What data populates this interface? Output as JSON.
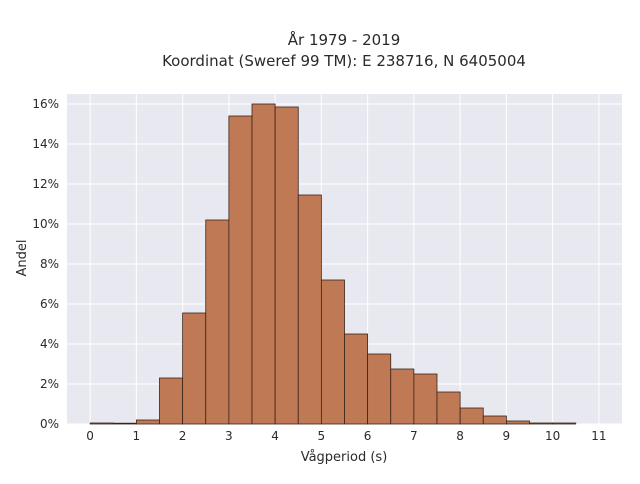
{
  "chart_data": {
    "type": "bar",
    "title_line1": "År 1979 - 2019",
    "title_line2": "Koordinat (Sweref 99 TM): E 238716, N 6405004",
    "xlabel": "Vågperiod (s)",
    "ylabel": "Andel",
    "xlim": [
      -0.5,
      11.5
    ],
    "ylim": [
      0,
      16.5
    ],
    "x_ticks": [
      0,
      1,
      2,
      3,
      4,
      5,
      6,
      7,
      8,
      9,
      10,
      11
    ],
    "y_ticks": [
      0,
      2,
      4,
      6,
      8,
      10,
      12,
      14,
      16
    ],
    "y_tick_suffix": "%",
    "grid": true,
    "bin_width": 0.5,
    "bins": [
      {
        "start": 0.0,
        "value": 0.05
      },
      {
        "start": 0.5,
        "value": 0.0
      },
      {
        "start": 1.0,
        "value": 0.2
      },
      {
        "start": 1.5,
        "value": 2.3
      },
      {
        "start": 2.0,
        "value": 5.55
      },
      {
        "start": 2.5,
        "value": 10.2
      },
      {
        "start": 3.0,
        "value": 15.4
      },
      {
        "start": 3.5,
        "value": 16.0
      },
      {
        "start": 4.0,
        "value": 15.85
      },
      {
        "start": 4.5,
        "value": 11.45
      },
      {
        "start": 5.0,
        "value": 7.2
      },
      {
        "start": 5.5,
        "value": 4.5
      },
      {
        "start": 6.0,
        "value": 3.5
      },
      {
        "start": 6.5,
        "value": 2.75
      },
      {
        "start": 7.0,
        "value": 2.5
      },
      {
        "start": 7.5,
        "value": 1.6
      },
      {
        "start": 8.0,
        "value": 0.8
      },
      {
        "start": 8.5,
        "value": 0.4
      },
      {
        "start": 9.0,
        "value": 0.15
      },
      {
        "start": 9.5,
        "value": 0.05
      },
      {
        "start": 10.0,
        "value": 0.05
      }
    ],
    "colors": {
      "bar_fill": "#bf7a55",
      "bar_stroke": "#3a2418",
      "plot_bg": "#e8e8f0",
      "grid": "#ffffff"
    }
  }
}
